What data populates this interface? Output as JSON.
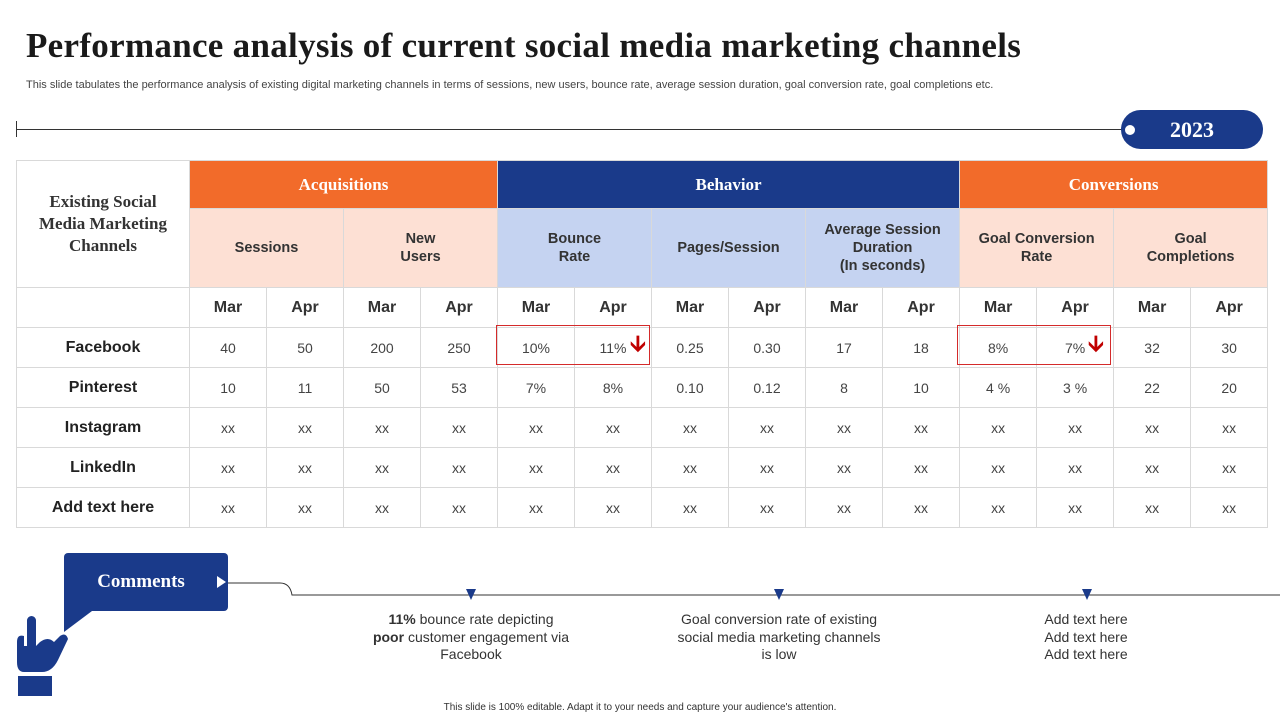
{
  "title": "Performance analysis of current social media marketing channels",
  "subtitle": "This slide tabulates the performance analysis of existing digital marketing channels in terms of sessions, new users, bounce rate, average session duration, goal conversion rate, goal completions etc.",
  "year": "2023",
  "table": {
    "channel_header": "Existing Social Media Marketing Channels",
    "groups": [
      "Acquisitions",
      "Behavior",
      "Conversions"
    ],
    "metrics": [
      "Sessions",
      "New Users",
      "Bounce Rate",
      "Pages/Session",
      "Average Session Duration (In seconds)",
      "Goal Conversion Rate",
      "Goal Completions"
    ],
    "months": [
      "Mar",
      "Apr"
    ],
    "rows": [
      {
        "channel": "Facebook",
        "values": [
          "40",
          "50",
          "200",
          "250",
          "10%",
          "11%",
          "0.25",
          "0.30",
          "17",
          "18",
          "8%",
          "7%",
          "32",
          "30"
        ]
      },
      {
        "channel": "Pinterest",
        "values": [
          "10",
          "11",
          "50",
          "53",
          "7%",
          "8%",
          "0.10",
          "0.12",
          "8",
          "10",
          "4 %",
          "3 %",
          "22",
          "20"
        ]
      },
      {
        "channel": "Instagram",
        "values": [
          "xx",
          "xx",
          "xx",
          "xx",
          "xx",
          "xx",
          "xx",
          "xx",
          "xx",
          "xx",
          "xx",
          "xx",
          "xx",
          "xx"
        ]
      },
      {
        "channel": "LinkedIn",
        "values": [
          "xx",
          "xx",
          "xx",
          "xx",
          "xx",
          "xx",
          "xx",
          "xx",
          "xx",
          "xx",
          "xx",
          "xx",
          "xx",
          "xx"
        ]
      },
      {
        "channel": "Add text here",
        "values": [
          "xx",
          "xx",
          "xx",
          "xx",
          "xx",
          "xx",
          "xx",
          "xx",
          "xx",
          "xx",
          "xx",
          "xx",
          "xx",
          "xx"
        ]
      }
    ]
  },
  "comments_label": "Comments",
  "comments": {
    "c1": {
      "bold1": "11%",
      "text1": " bounce rate depicting ",
      "bold2": "poor",
      "text2": " customer engagement via Facebook"
    },
    "c2": "Goal conversion rate of existing social media marketing channels is low",
    "c3": {
      "line1": "Add text here",
      "line2": "Add text here",
      "line3": "Add text here"
    }
  },
  "footer": "This slide is 100% editable. Adapt it to your needs and capture your audience's attention.",
  "colors": {
    "orange": "#f26b2a",
    "navy": "#1a3a8a",
    "peach": "#fde0d4",
    "light_blue": "#c5d3f1",
    "alert_red": "#c00000"
  }
}
